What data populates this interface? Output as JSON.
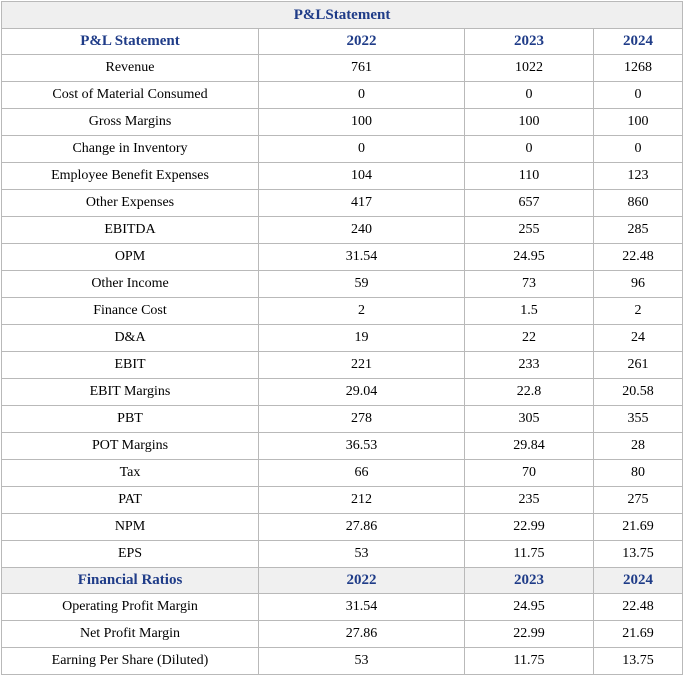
{
  "title": "P&LStatement",
  "pl": {
    "header": [
      "P&L Statement",
      "2022",
      "2023",
      "2024"
    ],
    "rows": [
      [
        "Revenue",
        "761",
        "1022",
        "1268"
      ],
      [
        "Cost of Material Consumed",
        "0",
        "0",
        "0"
      ],
      [
        "Gross Margins",
        "100",
        "100",
        "100"
      ],
      [
        "Change in Inventory",
        "0",
        "0",
        "0"
      ],
      [
        "Employee Benefit Expenses",
        "104",
        "110",
        "123"
      ],
      [
        "Other Expenses",
        "417",
        "657",
        "860"
      ],
      [
        "EBITDA",
        "240",
        "255",
        "285"
      ],
      [
        "OPM",
        "31.54",
        "24.95",
        "22.48"
      ],
      [
        "Other Income",
        "59",
        "73",
        "96"
      ],
      [
        "Finance Cost",
        "2",
        "1.5",
        "2"
      ],
      [
        "D&A",
        "19",
        "22",
        "24"
      ],
      [
        "EBIT",
        "221",
        "233",
        "261"
      ],
      [
        "EBIT Margins",
        "29.04",
        "22.8",
        "20.58"
      ],
      [
        "PBT",
        "278",
        "305",
        "355"
      ],
      [
        "POT Margins",
        "36.53",
        "29.84",
        "28"
      ],
      [
        "Tax",
        "66",
        "70",
        "80"
      ],
      [
        "PAT",
        "212",
        "235",
        "275"
      ],
      [
        "NPM",
        "27.86",
        "22.99",
        "21.69"
      ],
      [
        "EPS",
        "53",
        "11.75",
        "13.75"
      ]
    ]
  },
  "ratios": {
    "header": [
      "Financial Ratios",
      "2022",
      "2023",
      "2024"
    ],
    "rows": [
      [
        "Operating Profit Margin",
        "31.54",
        "24.95",
        "22.48"
      ],
      [
        "Net Profit Margin",
        "27.86",
        "22.99",
        "21.69"
      ],
      [
        "Earning Per Share (Diluted)",
        "53",
        "11.75",
        "13.75"
      ]
    ]
  },
  "colors": {
    "header_text": "#1f3c88",
    "title_background": "#efefef",
    "border": "#b9b9b9"
  }
}
